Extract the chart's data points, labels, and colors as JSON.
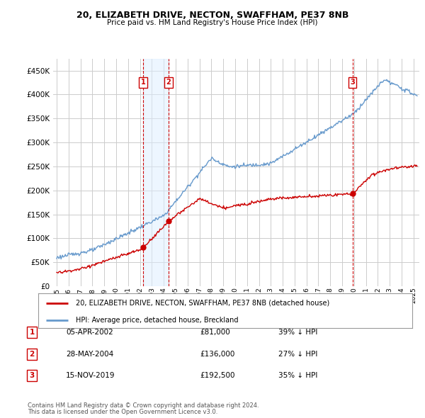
{
  "title": "20, ELIZABETH DRIVE, NECTON, SWAFFHAM, PE37 8NB",
  "subtitle": "Price paid vs. HM Land Registry's House Price Index (HPI)",
  "legend_line1": "20, ELIZABETH DRIVE, NECTON, SWAFFHAM, PE37 8NB (detached house)",
  "legend_line2": "HPI: Average price, detached house, Breckland",
  "footer1": "Contains HM Land Registry data © Crown copyright and database right 2024.",
  "footer2": "This data is licensed under the Open Government Licence v3.0.",
  "transactions": [
    {
      "num": 1,
      "date": "05-APR-2002",
      "price": "£81,000",
      "pct": "39% ↓ HPI",
      "year": 2002.27,
      "value": 81000
    },
    {
      "num": 2,
      "date": "28-MAY-2004",
      "price": "£136,000",
      "pct": "27% ↓ HPI",
      "year": 2004.41,
      "value": 136000
    },
    {
      "num": 3,
      "date": "15-NOV-2019",
      "price": "£192,500",
      "pct": "35% ↓ HPI",
      "year": 2019.87,
      "value": 192500
    }
  ],
  "red_color": "#cc0000",
  "blue_color": "#6699cc",
  "blue_fill": "#ddeeff",
  "vline_color": "#cc0000",
  "grid_color": "#cccccc",
  "background_color": "#ffffff",
  "ylim": [
    0,
    475000
  ],
  "yticks": [
    0,
    50000,
    100000,
    150000,
    200000,
    250000,
    300000,
    350000,
    400000,
    450000
  ],
  "xlim_start": 1994.7,
  "xlim_end": 2025.5,
  "xtick_years": [
    1995,
    1996,
    1997,
    1998,
    1999,
    2000,
    2001,
    2002,
    2003,
    2004,
    2005,
    2006,
    2007,
    2008,
    2009,
    2010,
    2011,
    2012,
    2013,
    2014,
    2015,
    2016,
    2017,
    2018,
    2019,
    2020,
    2021,
    2022,
    2023,
    2024,
    2025
  ]
}
